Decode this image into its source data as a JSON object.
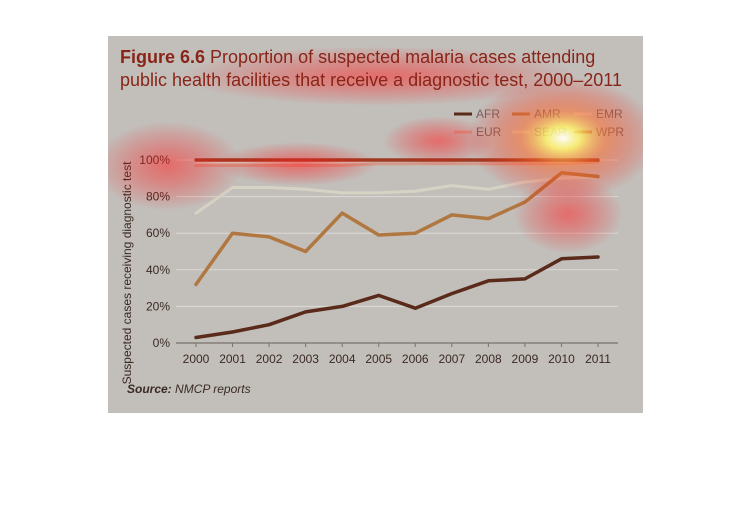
{
  "figure": {
    "number": "Figure 6.6",
    "title": "Proportion of suspected malaria cases attending public health facilities that receive a diagnostic test, 2000–2011",
    "source_label": "Source:",
    "source_text": "NMCP reports"
  },
  "chart_data": {
    "type": "line",
    "title": "Proportion of suspected malaria cases attending public health facilities that receive a diagnostic test, 2000–2011",
    "xlabel": "",
    "ylabel": "Suspected cases receiving diagnostic test",
    "x": [
      "2000",
      "2001",
      "2002",
      "2003",
      "2004",
      "2005",
      "2006",
      "2007",
      "2008",
      "2009",
      "2010",
      "2011"
    ],
    "yticks": [
      "0%",
      "20%",
      "40%",
      "60%",
      "80%",
      "100%"
    ],
    "ylim": [
      0,
      100
    ],
    "legend_position": "top-right",
    "series": [
      {
        "name": "AFR",
        "color": "#5a2a1a",
        "values": [
          3,
          6,
          10,
          17,
          20,
          26,
          19,
          27,
          34,
          35,
          46,
          47
        ]
      },
      {
        "name": "AMR",
        "color": "#b07840",
        "values": [
          32,
          60,
          58,
          50,
          71,
          59,
          60,
          70,
          68,
          77,
          93,
          91
        ]
      },
      {
        "name": "EMR",
        "color": "#d6d2c4",
        "values": [
          71,
          85,
          85,
          84,
          82,
          82,
          83,
          86,
          84,
          88,
          90,
          91
        ]
      },
      {
        "name": "EUR",
        "color": "#d49a8a",
        "values": [
          97,
          97,
          97,
          97,
          97,
          98,
          98,
          98,
          98,
          98,
          98,
          99
        ]
      },
      {
        "name": "SEAR",
        "color": "#d9d3c2",
        "values": [
          99,
          99,
          99,
          99,
          99,
          100,
          100,
          100,
          100,
          100,
          100,
          100
        ]
      },
      {
        "name": "WPR",
        "color": "#9e3a22",
        "values": [
          100,
          100,
          100,
          100,
          100,
          100,
          100,
          100,
          100,
          100,
          100,
          100
        ]
      }
    ]
  }
}
